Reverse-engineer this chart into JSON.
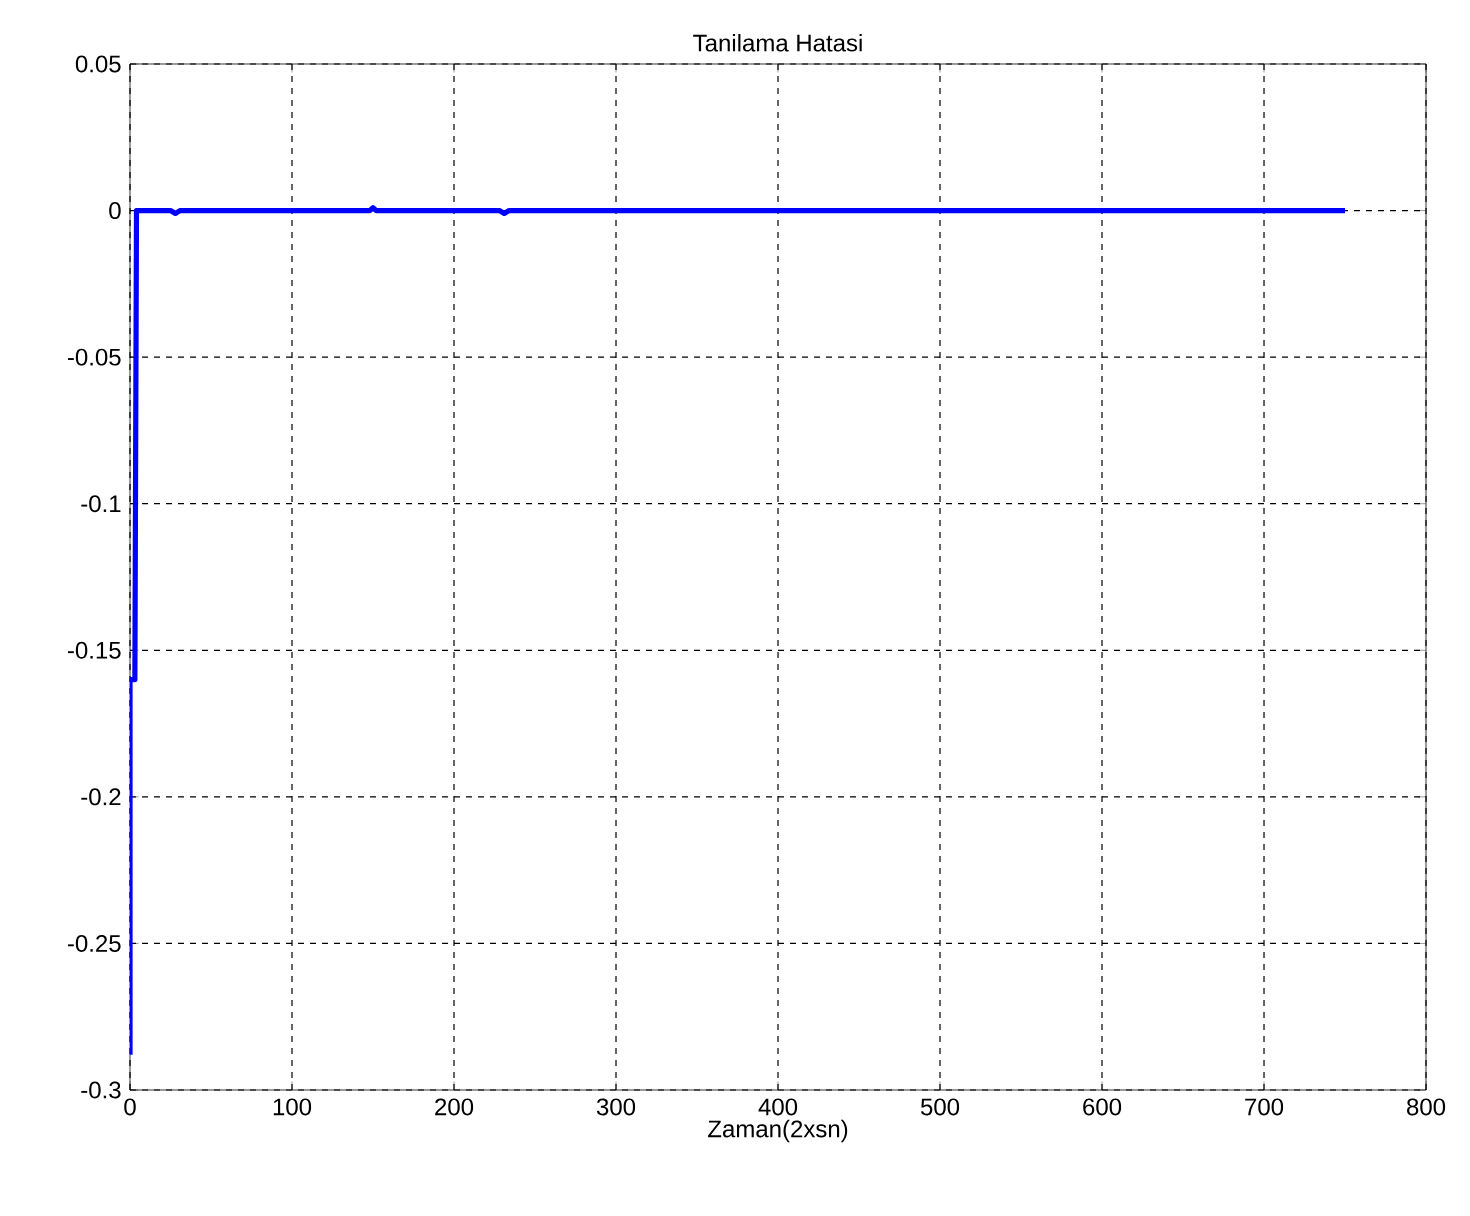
{
  "chart_data": {
    "type": "line",
    "title": "Tanilama Hatasi",
    "xlabel": "Zaman(2xsn)",
    "xlim": [
      0,
      800
    ],
    "xticks": [
      0,
      100,
      200,
      300,
      400,
      500,
      600,
      700,
      800
    ],
    "ylim": [
      -0.3,
      0.05
    ],
    "yticks": [
      -0.3,
      -0.25,
      -0.2,
      -0.15,
      -0.1,
      -0.05,
      0,
      0.05
    ],
    "grid": true,
    "series": [
      {
        "color": "#0000ff",
        "x": [
          0,
          0,
          3,
          4,
          25,
          28,
          31,
          148,
          150,
          152,
          228,
          231,
          234,
          750
        ],
        "values": [
          -0.288,
          -0.16,
          -0.16,
          0,
          0,
          -0.001,
          0,
          0,
          0.001,
          0,
          0,
          -0.001,
          0,
          0
        ]
      }
    ]
  }
}
